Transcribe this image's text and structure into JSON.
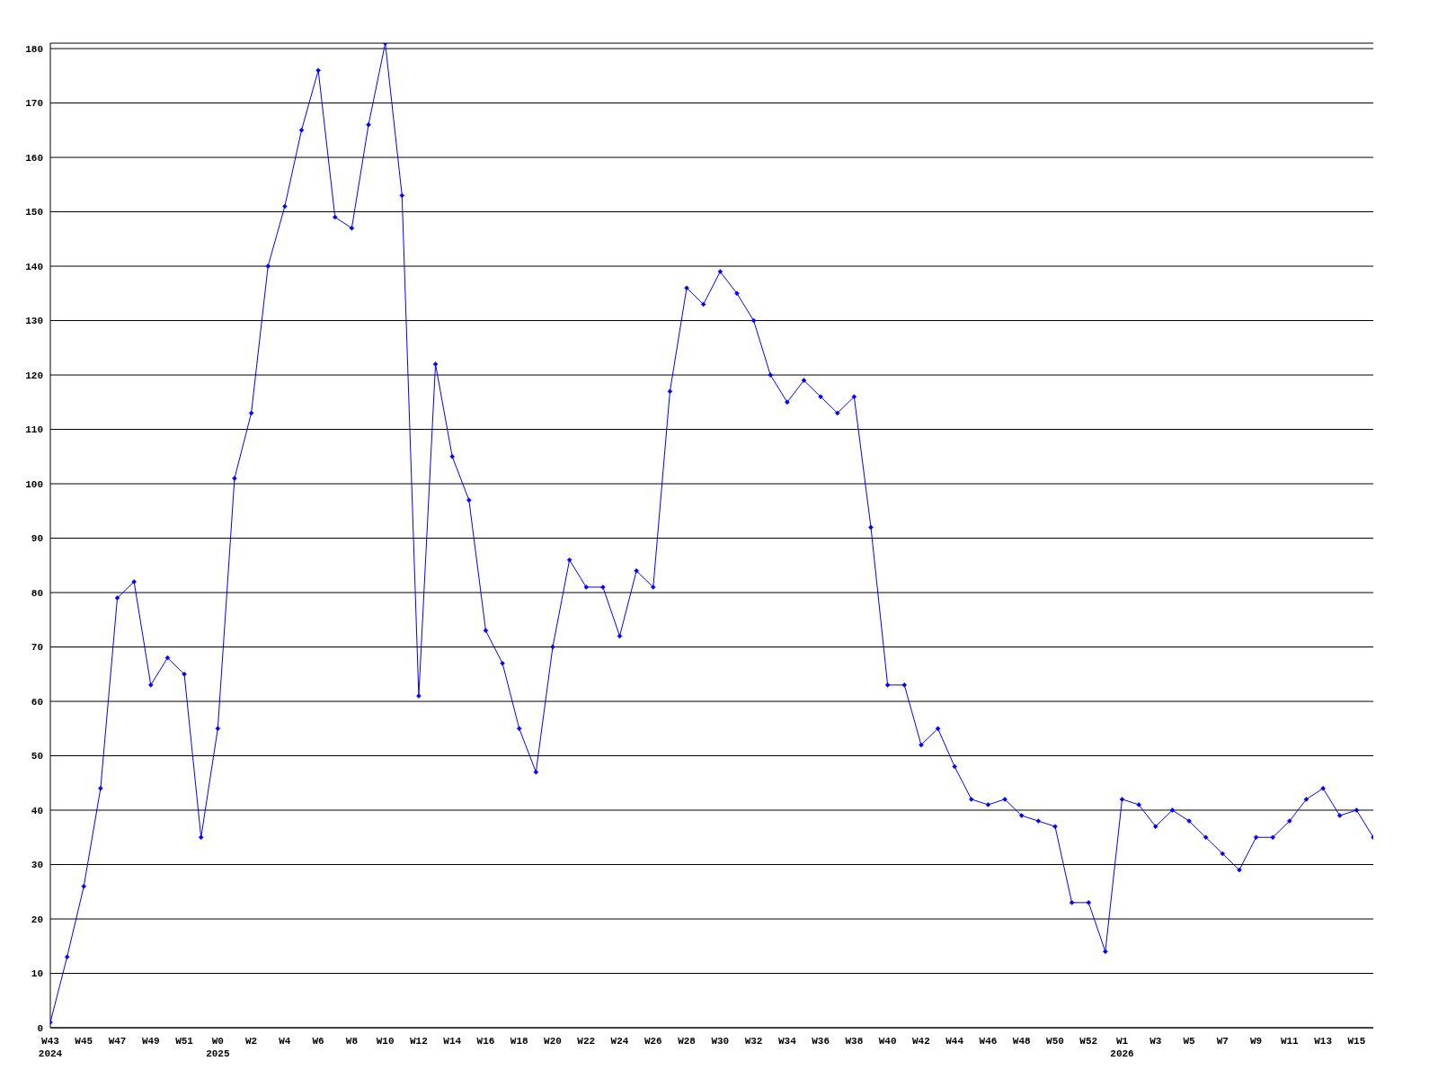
{
  "chart_data": {
    "type": "line",
    "categories": [
      "W43\n2024",
      null,
      "W45",
      null,
      "W47",
      null,
      "W49",
      null,
      "W51",
      null,
      "W0\n2025",
      null,
      "W2",
      null,
      "W4",
      null,
      "W6",
      null,
      "W8",
      null,
      "W10",
      null,
      "W12",
      null,
      "W14",
      null,
      "W16",
      null,
      "W18",
      null,
      "W20",
      null,
      "W22",
      null,
      "W24",
      null,
      "W26",
      null,
      "W28",
      null,
      "W30",
      null,
      "W32",
      null,
      "W34",
      null,
      "W36",
      null,
      "W38",
      null,
      "W40",
      null,
      "W42",
      null,
      "W44",
      null,
      "W46",
      null,
      "W48",
      null,
      "W50",
      null,
      "W52",
      null,
      "W1\n2026",
      null,
      "W3",
      null,
      "W5",
      null,
      "W7",
      null,
      "W9",
      null,
      "W11",
      null,
      "W13",
      null,
      "W15",
      null
    ],
    "series": [
      {
        "color": "#0000ff",
        "values": [
          1,
          13,
          26,
          44,
          79,
          82,
          63,
          68,
          65,
          35,
          55,
          101,
          113,
          140,
          151,
          165,
          176,
          149,
          147,
          166,
          181,
          153,
          61,
          122,
          105,
          97,
          73,
          67,
          55,
          47,
          70,
          86,
          81,
          81,
          72,
          84,
          81,
          117,
          136,
          133,
          139,
          135,
          130,
          120,
          115,
          119,
          116,
          113,
          116,
          92,
          63,
          63,
          52,
          55,
          48,
          42,
          41,
          42,
          39,
          38,
          37,
          23,
          23,
          14,
          42,
          41,
          37,
          40,
          38,
          35,
          32,
          29,
          35,
          35,
          38,
          42,
          44,
          39,
          40,
          35
        ]
      }
    ],
    "ylim": [
      0,
      181
    ],
    "yticks": [
      0,
      10,
      20,
      30,
      40,
      50,
      60,
      70,
      80,
      90,
      100,
      110,
      120,
      130,
      140,
      150,
      160,
      170,
      180
    ],
    "grid": "y",
    "marker": "diamond",
    "line_style": "solid"
  }
}
